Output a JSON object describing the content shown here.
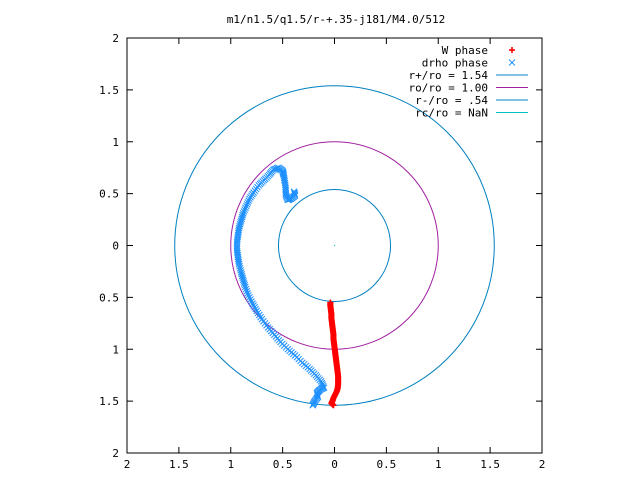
{
  "chart_data": {
    "type": "scatter",
    "title": "m1/n1.5/q1.5/r-+.35-j181/M4.0/512",
    "xlabel": "",
    "ylabel": "",
    "xlim": [
      -2,
      2
    ],
    "ylim": [
      -2,
      2
    ],
    "x_ticks": [
      {
        "value": -2,
        "label": "2"
      },
      {
        "value": -1.5,
        "label": "1.5"
      },
      {
        "value": -1,
        "label": "1"
      },
      {
        "value": -0.5,
        "label": "0.5"
      },
      {
        "value": 0,
        "label": "0"
      },
      {
        "value": 0.5,
        "label": "0.5"
      },
      {
        "value": 1,
        "label": "1"
      },
      {
        "value": 1.5,
        "label": "1.5"
      },
      {
        "value": 2,
        "label": "2"
      }
    ],
    "y_ticks": [
      {
        "value": 2,
        "label": "2"
      },
      {
        "value": 1.5,
        "label": "1.5"
      },
      {
        "value": 1,
        "label": "1"
      },
      {
        "value": 0.5,
        "label": "0.5"
      },
      {
        "value": 0,
        "label": "0"
      },
      {
        "value": -0.5,
        "label": "0.5"
      },
      {
        "value": -1,
        "label": "1"
      },
      {
        "value": -1.5,
        "label": "1.5"
      },
      {
        "value": -2,
        "label": "2"
      }
    ],
    "grid": false,
    "legend_position": "top-right",
    "series": [
      {
        "name": "W phase",
        "kind": "points",
        "marker": "+",
        "color": "#ff0000",
        "points": [
          [
            -0.04,
            -0.55
          ],
          [
            -0.04,
            -0.58
          ],
          [
            -0.035,
            -0.62
          ],
          [
            -0.03,
            -0.66
          ],
          [
            -0.03,
            -0.7
          ],
          [
            -0.025,
            -0.74
          ],
          [
            -0.02,
            -0.78
          ],
          [
            -0.015,
            -0.82
          ],
          [
            -0.01,
            -0.86
          ],
          [
            -0.01,
            -0.9
          ],
          [
            -0.005,
            -0.94
          ],
          [
            0.0,
            -0.98
          ],
          [
            0.005,
            -1.02
          ],
          [
            0.01,
            -1.06
          ],
          [
            0.015,
            -1.1
          ],
          [
            0.02,
            -1.14
          ],
          [
            0.025,
            -1.18
          ],
          [
            0.03,
            -1.22
          ],
          [
            0.035,
            -1.26
          ],
          [
            0.035,
            -1.3
          ],
          [
            0.035,
            -1.34
          ],
          [
            0.03,
            -1.38
          ],
          [
            0.02,
            -1.41
          ],
          [
            0.005,
            -1.44
          ],
          [
            -0.01,
            -1.47
          ],
          [
            -0.02,
            -1.5
          ],
          [
            -0.03,
            -1.52
          ],
          [
            -0.01,
            -1.54
          ]
        ]
      },
      {
        "name": "drho phase",
        "kind": "points",
        "marker": "x",
        "color": "#1e90ff",
        "points": [
          [
            -0.39,
            0.52
          ],
          [
            -0.38,
            0.48
          ],
          [
            -0.42,
            0.45
          ],
          [
            -0.45,
            0.44
          ],
          [
            -0.47,
            0.49
          ],
          [
            -0.47,
            0.55
          ],
          [
            -0.48,
            0.62
          ],
          [
            -0.49,
            0.68
          ],
          [
            -0.5,
            0.72
          ],
          [
            -0.54,
            0.75
          ],
          [
            -0.59,
            0.73
          ],
          [
            -0.63,
            0.68
          ],
          [
            -0.68,
            0.63
          ],
          [
            -0.73,
            0.58
          ],
          [
            -0.78,
            0.51
          ],
          [
            -0.82,
            0.45
          ],
          [
            -0.85,
            0.38
          ],
          [
            -0.88,
            0.31
          ],
          [
            -0.9,
            0.24
          ],
          [
            -0.92,
            0.17
          ],
          [
            -0.93,
            0.1
          ],
          [
            -0.94,
            0.03
          ],
          [
            -0.94,
            -0.04
          ],
          [
            -0.93,
            -0.11
          ],
          [
            -0.92,
            -0.18
          ],
          [
            -0.9,
            -0.26
          ],
          [
            -0.88,
            -0.33
          ],
          [
            -0.86,
            -0.4
          ],
          [
            -0.83,
            -0.48
          ],
          [
            -0.79,
            -0.56
          ],
          [
            -0.75,
            -0.63
          ],
          [
            -0.7,
            -0.71
          ],
          [
            -0.64,
            -0.79
          ],
          [
            -0.58,
            -0.86
          ],
          [
            -0.52,
            -0.93
          ],
          [
            -0.45,
            -1.0
          ],
          [
            -0.38,
            -1.06
          ],
          [
            -0.31,
            -1.13
          ],
          [
            -0.24,
            -1.19
          ],
          [
            -0.18,
            -1.25
          ],
          [
            -0.13,
            -1.31
          ],
          [
            -0.1,
            -1.37
          ],
          [
            -0.14,
            -1.39
          ],
          [
            -0.17,
            -1.42
          ],
          [
            -0.16,
            -1.46
          ],
          [
            -0.19,
            -1.5
          ],
          [
            -0.21,
            -1.54
          ]
        ]
      },
      {
        "name": "r+/ro = 1.54",
        "kind": "circle",
        "radius": 1.54,
        "color": "#0080c0"
      },
      {
        "name": "ro/ro = 1.00",
        "kind": "circle",
        "radius": 1.0,
        "color": "#a020a0"
      },
      {
        "name": "r-/ro = .54",
        "kind": "circle",
        "radius": 0.54,
        "color": "#0080c0"
      },
      {
        "name": "rc/ro = NaN",
        "kind": "circle",
        "radius": null,
        "color": "#00c0c0"
      }
    ]
  }
}
